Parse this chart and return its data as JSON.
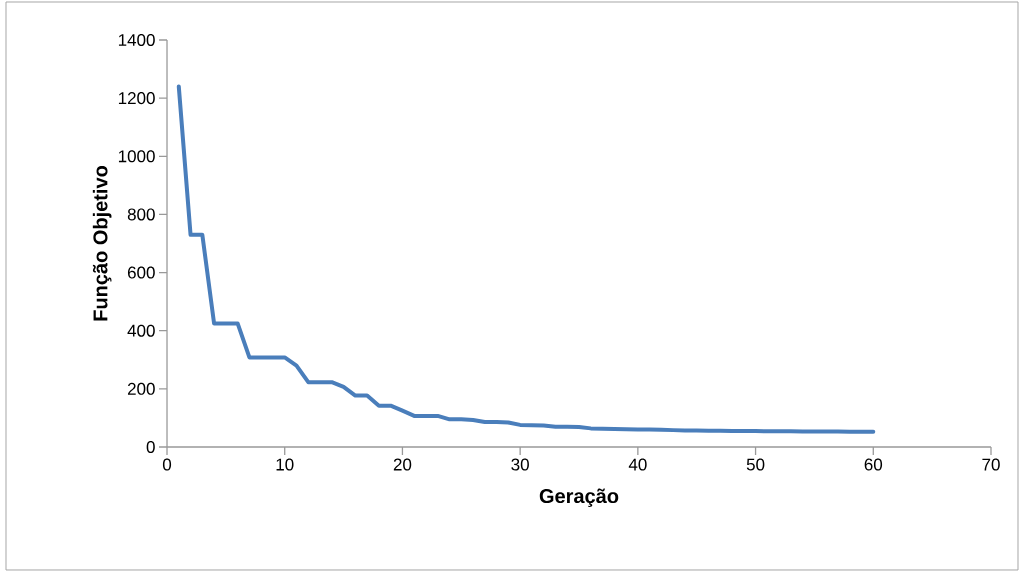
{
  "chart_data": {
    "type": "line",
    "xlabel": "Geração",
    "ylabel": "Função Objetivo",
    "x": [
      1,
      2,
      3,
      4,
      5,
      6,
      7,
      8,
      9,
      10,
      11,
      12,
      13,
      14,
      15,
      16,
      17,
      18,
      19,
      20,
      21,
      22,
      23,
      24,
      25,
      26,
      27,
      28,
      29,
      30,
      31,
      32,
      33,
      34,
      35,
      36,
      37,
      38,
      39,
      40,
      41,
      42,
      43,
      44,
      45,
      46,
      47,
      48,
      49,
      50,
      51,
      52,
      53,
      54,
      55,
      56,
      57,
      58,
      59,
      60
    ],
    "series": [
      {
        "color": "#4a7ebb",
        "values": [
          1240,
          730,
          730,
          425,
          425,
          425,
          308,
          308,
          308,
          308,
          280,
          223,
          223,
          223,
          207,
          177,
          177,
          142,
          142,
          125,
          107,
          107,
          107,
          95,
          95,
          93,
          86,
          86,
          84,
          76,
          75,
          74,
          70,
          70,
          69,
          64,
          63,
          62,
          61,
          60,
          60,
          59,
          58,
          57,
          57,
          56,
          56,
          55,
          55,
          55,
          54,
          54,
          54,
          53,
          53,
          53,
          53,
          52,
          52,
          52
        ]
      }
    ],
    "xlim": [
      0,
      70
    ],
    "xticks": [
      0,
      10,
      20,
      30,
      40,
      50,
      60,
      70
    ],
    "ylim": [
      0,
      1400
    ],
    "yticks": [
      0,
      200,
      400,
      600,
      800,
      1000,
      1200,
      1400
    ],
    "grid": false,
    "marker": "none",
    "line_style": "solid"
  }
}
